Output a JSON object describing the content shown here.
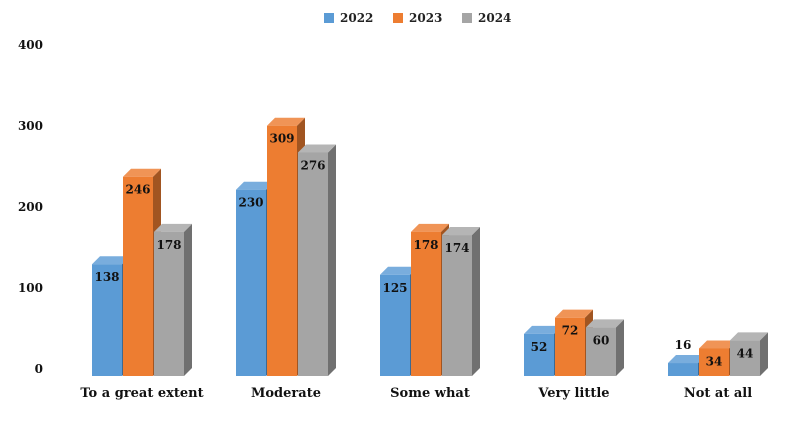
{
  "chart_data": {
    "type": "bar",
    "categories": [
      "To a great extent",
      "Moderate",
      "Some what",
      "Very little",
      "Not at all"
    ],
    "series": [
      {
        "name": "2022",
        "values": [
          138,
          230,
          125,
          52,
          16
        ]
      },
      {
        "name": "2023",
        "values": [
          246,
          309,
          178,
          72,
          34
        ]
      },
      {
        "name": "2024",
        "values": [
          178,
          276,
          174,
          60,
          44
        ]
      }
    ],
    "yticks": [
      "0",
      "100",
      "200",
      "300",
      "400"
    ],
    "ylim": [
      0,
      400
    ],
    "legend_position": "top-center",
    "grid": false,
    "style": "3d-column"
  },
  "colors": {
    "2022": "#5B9BD5",
    "2023": "#ED7D31",
    "2024": "#A5A5A5",
    "outside_label_2022": "#5B9BD5"
  }
}
